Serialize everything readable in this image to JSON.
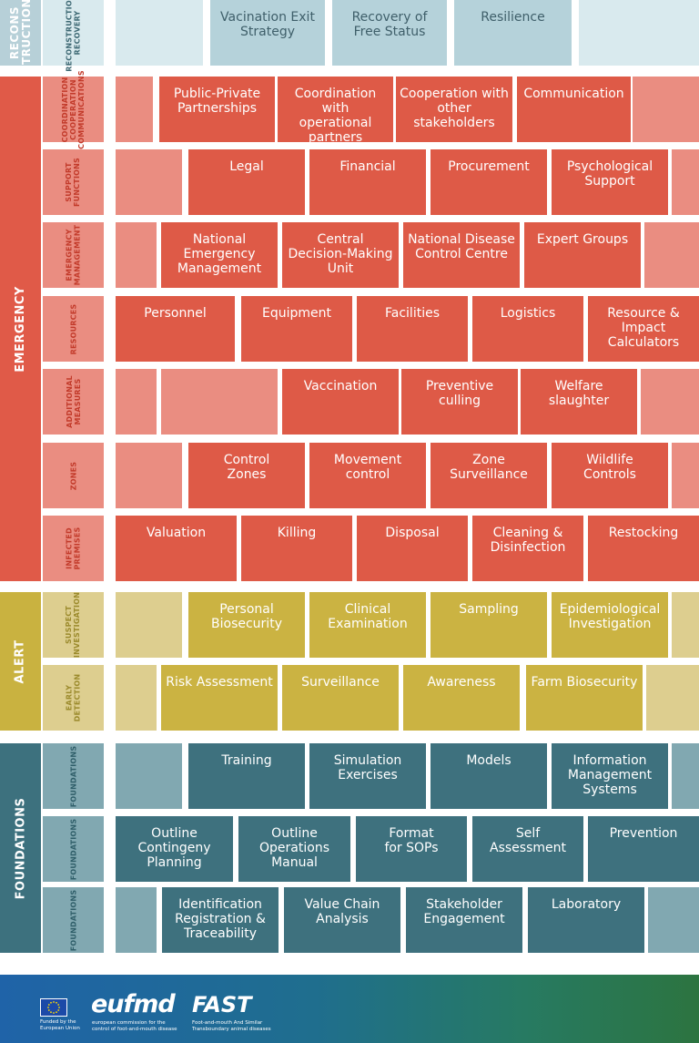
{
  "colors": {
    "recon_label": "#b7d0d8",
    "recon_cell": "#b5d2da",
    "recon_pad": "#d9eaee",
    "emergency_label": "#e05a48",
    "emergency_cell": "#de5a47",
    "emergency_pad": "#ea8d81",
    "alert_label": "#c9b240",
    "alert_cell": "#cbb342",
    "alert_pad": "#ddce8f",
    "foundations_label": "#3d717e",
    "foundations_cell": "#3e717e",
    "foundations_pad": "#81a8b1"
  },
  "bands": [
    {
      "id": "reconstruction",
      "label": "RECONS\nTRUCTION"
    },
    {
      "id": "emergency",
      "label": "EMERGENCY"
    },
    {
      "id": "alert",
      "label": "ALERT"
    },
    {
      "id": "foundations",
      "label": "FOUNDATIONS"
    }
  ],
  "rows": [
    {
      "band": "reconstruction",
      "label": "RECONSTRUCTION\nRECOVERY",
      "cells": [
        "",
        "Vacination Exit\nStrategy",
        "Recovery of\nFree Status",
        "Resilience",
        ""
      ]
    },
    {
      "band": "emergency",
      "label": "COORDINATION\nCOOPERATION\nCOMMUNICATIONS",
      "cells": [
        "",
        "Public-Private\nPartnerships",
        "Coordination with\noperational\npartners",
        "Cooperation with\nother\nstakeholders",
        "Communication",
        ""
      ]
    },
    {
      "band": "emergency",
      "label": "SUPPORT\nFUNCTIONS",
      "cells": [
        "",
        "Legal",
        "Financial",
        "Procurement",
        "Psychological\nSupport",
        ""
      ]
    },
    {
      "band": "emergency",
      "label": "EMERGENCY\nMANAGEMENT",
      "cells": [
        "",
        "National\nEmergency\nManagement",
        "Central\nDecision-Making\nUnit",
        "National Disease\nControl Centre",
        "Expert Groups",
        ""
      ]
    },
    {
      "band": "emergency",
      "label": "RESOURCES",
      "cells": [
        "Personnel",
        "Equipment",
        "Facilities",
        "Logistics",
        "Resource &\nImpact\nCalculators"
      ]
    },
    {
      "band": "emergency",
      "label": "ADDITIONAL\nMEASURES",
      "cells": [
        "",
        "",
        "Vaccination",
        "Preventive\nculling",
        "Welfare\nslaughter",
        ""
      ]
    },
    {
      "band": "emergency",
      "label": "ZONES",
      "cells": [
        "",
        "Control\nZones",
        "Movement\ncontrol",
        "Zone\nSurveillance",
        "Wildlife\nControls",
        ""
      ]
    },
    {
      "band": "emergency",
      "label": "INFECTED\nPREMISES",
      "cells": [
        "Valuation",
        "Killing",
        "Disposal",
        "Cleaning &\nDisinfection",
        "Restocking"
      ]
    },
    {
      "band": "alert",
      "label": "SUSPECT\nINVESTIGATION",
      "cells": [
        "",
        "Personal\nBiosecurity",
        "Clinical\nExamination",
        "Sampling",
        "Epidemiological\nInvestigation",
        ""
      ]
    },
    {
      "band": "alert",
      "label": "EARLY\nDETECTION",
      "cells": [
        "",
        "Risk Assessment",
        "Surveillance",
        "Awareness",
        "Farm Biosecurity",
        ""
      ]
    },
    {
      "band": "foundations",
      "label": "FOUNDATIONS",
      "cells": [
        "",
        "Training",
        "Simulation\nExercises",
        "Models",
        "Information\nManagement\nSystems",
        ""
      ]
    },
    {
      "band": "foundations",
      "label": "FOUNDATIONS",
      "cells": [
        "Outline\nContingeny\nPlanning",
        "Outline\nOperations\nManual",
        "Format\nfor SOPs",
        "Self\nAssessment",
        "Prevention"
      ]
    },
    {
      "band": "foundations",
      "label": "FOUNDATIONS",
      "cells": [
        "",
        "Identification\nRegistration &\nTraceability",
        "Value Chain\nAnalysis",
        "Stakeholder\nEngagement",
        "Laboratory",
        ""
      ]
    }
  ],
  "footer": {
    "eu_caption": "Funded by the\nEuropean Union",
    "eufmd_logo": "eufmd",
    "eufmd_caption": "european commission for the\ncontrol of foot-and-mouth disease",
    "fast_logo": "FAST",
    "fast_caption": "Foot-and-mouth And Similar\nTransboundary animal diseases"
  }
}
